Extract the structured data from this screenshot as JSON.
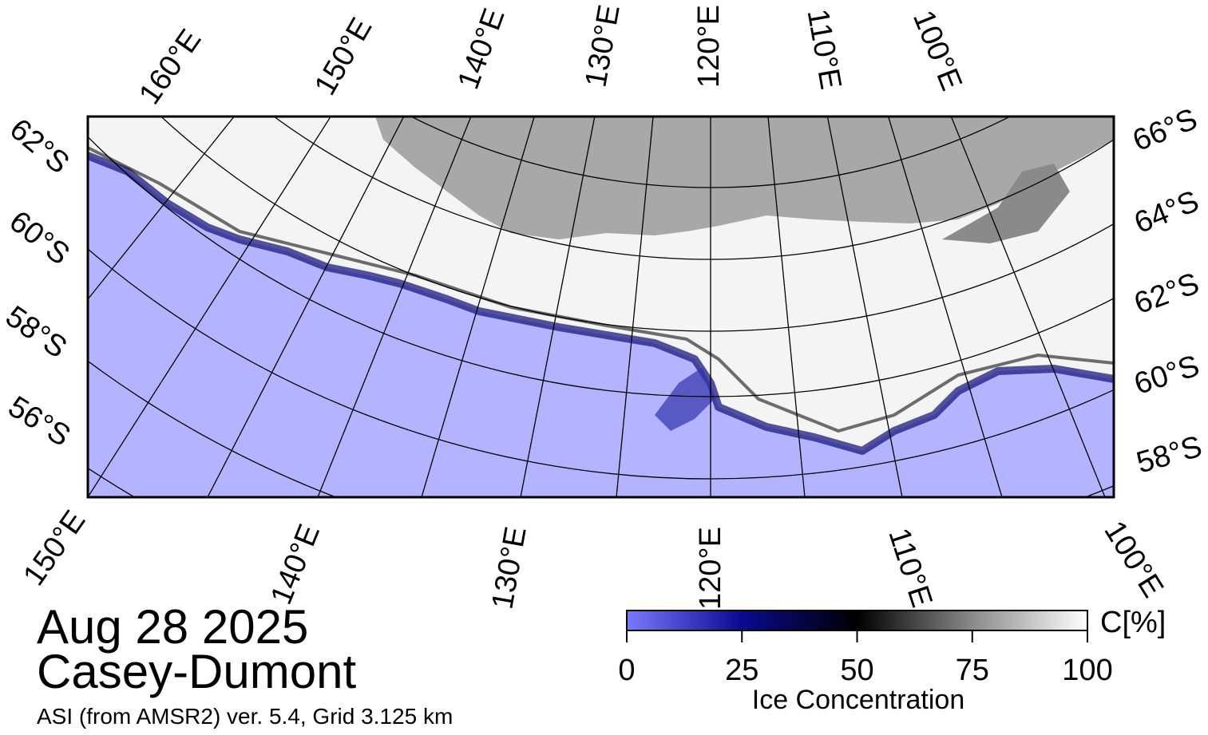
{
  "title": {
    "date": "Aug 28 2025",
    "region": "Casey-Dumont",
    "source": "ASI (from AMSR2) ver. 5.4,  Grid 3.125 km"
  },
  "map": {
    "top_labels": [
      "160°E",
      "150°E",
      "140°E",
      "130°E",
      "120°E",
      "110°E",
      "100°E"
    ],
    "right_labels": [
      "66°S",
      "64°S",
      "62°S",
      "60°S",
      "58°S"
    ],
    "left_labels": [
      "62°S",
      "60°S",
      "58°S",
      "56°S"
    ],
    "bottom_labels": [
      "150°E",
      "140°E",
      "130°E",
      "120°E",
      "110°E",
      "100°E"
    ]
  },
  "colorbar": {
    "label": "Ice Concentration",
    "unit": "C[%]",
    "range": [
      0,
      100
    ],
    "ticks": [
      0,
      25,
      50,
      75,
      100
    ]
  }
}
